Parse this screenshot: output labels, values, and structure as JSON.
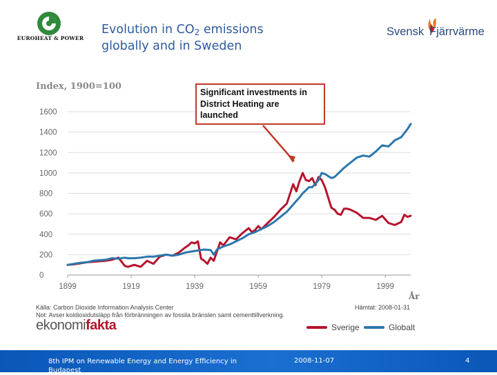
{
  "logos": {
    "left_brand": "EUROHEAT & POWER",
    "right_part1": "Svensk",
    "right_part2": "Fjärrvärme"
  },
  "slide": {
    "title_pre": "Evolution in CO",
    "title_sub": "2",
    "title_post": " emissions",
    "title_line2": "globally and in Sweden"
  },
  "callout": {
    "line1": "Significant investments in",
    "line2": "District Heating are",
    "line3": "launched"
  },
  "source": {
    "line1": "Källa: Carbon Dioxide Information Analysis Center",
    "line2": "Not: Avser koldioxidutsläpp från förbränningen av fossila bränslen samt cementtillverkning.",
    "fetched": "Hämtat: 2008-01-31"
  },
  "brand_bottom": {
    "part1": "ekonomi",
    "part2": "fakta"
  },
  "footer": {
    "text": "8th IPM on Renewable Energy and Energy Efficiency in Budapest",
    "date": "2008-11-07",
    "page": "4"
  },
  "colors": {
    "sverige": "#b5132b",
    "globalt": "#2b77ab",
    "title": "#2f5a9e",
    "callout_border": "#c0392b",
    "footer": "#1166c6"
  },
  "chart_data": {
    "type": "line",
    "title": "Index, 1900=100",
    "xlabel": "År",
    "ylabel": "",
    "xlim": [
      1899,
      2007
    ],
    "ylim": [
      0,
      1600
    ],
    "xticks": [
      1899,
      1919,
      1939,
      1959,
      1979,
      1999
    ],
    "yticks": [
      0,
      200,
      400,
      600,
      800,
      1000,
      1200,
      1400,
      1600
    ],
    "grid": true,
    "legend_position": "bottom-right",
    "series": [
      {
        "name": "Sverige",
        "color": "#b5132b",
        "x": [
          1899,
          1901,
          1903,
          1905,
          1907,
          1909,
          1911,
          1913,
          1915,
          1917,
          1918,
          1920,
          1922,
          1924,
          1926,
          1928,
          1930,
          1932,
          1934,
          1936,
          1937,
          1938,
          1939,
          1940,
          1941,
          1942,
          1943,
          1944,
          1945,
          1946,
          1947,
          1948,
          1950,
          1952,
          1954,
          1956,
          1957,
          1958,
          1959,
          1960,
          1962,
          1964,
          1966,
          1968,
          1970,
          1971,
          1972,
          1973,
          1974,
          1975,
          1976,
          1977,
          1978,
          1979,
          1980,
          1981,
          1982,
          1983,
          1984,
          1985,
          1986,
          1987,
          1988,
          1990,
          1992,
          1994,
          1996,
          1998,
          2000,
          2002,
          2004,
          2005,
          2006,
          2007
        ],
        "y": [
          100,
          105,
          115,
          125,
          130,
          135,
          140,
          150,
          170,
          90,
          80,
          100,
          80,
          140,
          110,
          180,
          200,
          190,
          220,
          270,
          290,
          320,
          310,
          330,
          160,
          140,
          110,
          170,
          140,
          230,
          320,
          290,
          370,
          350,
          410,
          460,
          420,
          440,
          480,
          450,
          510,
          570,
          640,
          700,
          890,
          820,
          920,
          1000,
          930,
          920,
          950,
          880,
          960,
          930,
          860,
          760,
          660,
          640,
          600,
          590,
          650,
          650,
          640,
          610,
          560,
          560,
          540,
          580,
          510,
          490,
          520,
          590,
          570,
          580
        ]
      },
      {
        "name": "Globalt",
        "color": "#2b77ab",
        "x": [
          1899,
          1901,
          1903,
          1905,
          1907,
          1909,
          1911,
          1913,
          1915,
          1917,
          1918,
          1920,
          1922,
          1924,
          1926,
          1928,
          1930,
          1932,
          1934,
          1936,
          1938,
          1940,
          1942,
          1944,
          1945,
          1946,
          1948,
          1950,
          1952,
          1954,
          1956,
          1958,
          1960,
          1962,
          1964,
          1966,
          1968,
          1970,
          1972,
          1973,
          1974,
          1975,
          1976,
          1978,
          1979,
          1980,
          1982,
          1983,
          1984,
          1986,
          1988,
          1990,
          1992,
          1994,
          1996,
          1998,
          2000,
          2002,
          2004,
          2006,
          2007
        ],
        "y": [
          100,
          110,
          120,
          125,
          140,
          145,
          150,
          165,
          160,
          170,
          165,
          165,
          170,
          180,
          180,
          190,
          200,
          190,
          200,
          220,
          230,
          240,
          250,
          245,
          200,
          250,
          280,
          300,
          330,
          360,
          400,
          420,
          450,
          480,
          520,
          570,
          620,
          690,
          760,
          800,
          830,
          860,
          860,
          930,
          1000,
          990,
          950,
          960,
          990,
          1050,
          1100,
          1150,
          1170,
          1160,
          1210,
          1270,
          1260,
          1320,
          1350,
          1430,
          1480
        ]
      }
    ]
  }
}
